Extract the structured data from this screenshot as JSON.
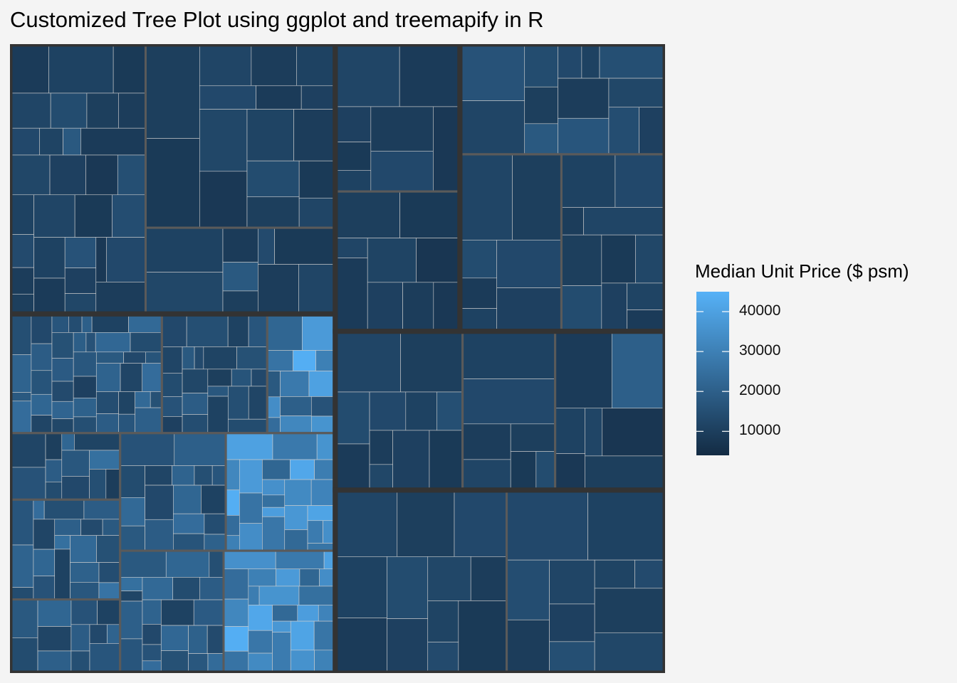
{
  "chart_data": {
    "type": "treemap",
    "title": "Customized Tree Plot using ggplot and treemapify in R",
    "fill_label": "Median Unit Price ($ psm)",
    "fill_range": [
      4000,
      45000
    ],
    "fill_colors": {
      "low": "#132B43",
      "high": "#56B1F7"
    },
    "legend": {
      "position": "right",
      "ticks": [
        {
          "value": 10000,
          "label": "10000"
        },
        {
          "value": 20000,
          "label": "20000"
        },
        {
          "value": 30000,
          "label": "30000"
        },
        {
          "value": 40000,
          "label": "40000"
        }
      ]
    },
    "border_colors": {
      "level1": "#333333",
      "level2": "#5a5a5a",
      "level3": "#cfcfcf"
    },
    "groups": [
      {
        "weight": 42.9,
        "subgroups": [
          {
            "weight": 20.6,
            "tiles": [
              9000,
              11000,
              8500,
              12000,
              14000,
              10000,
              9500,
              13000,
              11500,
              18000,
              9000,
              12500,
              10500,
              8000,
              15000,
              11000,
              13500,
              9500,
              10000,
              12000,
              8500,
              14500,
              11000,
              9000,
              16000,
              10500,
              12500,
              8000,
              13000,
              9500
            ]
          },
          {
            "weight": 19.6,
            "tiles": [
              10000,
              8500,
              12000,
              9500,
              11000,
              13000,
              9000,
              10500,
              12500,
              8000,
              11500,
              9500,
              14000,
              10000,
              8500,
              12000
            ]
          },
          {
            "weight": 9.2,
            "tiles": [
              11000,
              12500,
              9000,
              18000,
              10000,
              13500,
              8500,
              9500,
              12000
            ]
          }
        ]
      },
      {
        "weight": 57.1,
        "subgroups": [
          {
            "weight": 16.3,
            "tiles": [
              15000,
              21000,
              18000,
              24000,
              13000,
              19000,
              16500,
              22000,
              12000,
              17000,
              14500,
              20000,
              11000,
              23000,
              15500,
              18500,
              13500,
              21500,
              12500,
              19500,
              16000,
              22500,
              14000,
              17500,
              10500,
              20500,
              15000,
              18000,
              13000,
              16500,
              21000,
              12000,
              24000,
              14500,
              19000,
              11500,
              17000,
              23000,
              15500,
              20000
            ]
          },
          {
            "weight": 11.3,
            "tiles": [
              13000,
              15000,
              11000,
              17000,
              12000,
              14000,
              16000,
              10500,
              18000,
              13500,
              11500,
              15500,
              12500,
              19000,
              14500,
              10000,
              16500,
              13000,
              17500,
              11000,
              15000,
              12000,
              14000
            ]
          },
          {
            "weight": 7.3,
            "tiles": [
              22000,
              38000,
              26000,
              44000,
              30000,
              18000,
              34000,
              24000,
              28000,
              40000,
              20000,
              32000,
              16000,
              36000
            ]
          },
          {
            "weight": 6.6,
            "tiles": [
              12000,
              16000,
              10000,
              19000,
              14000,
              22000,
              11500,
              17500,
              13000,
              25000,
              15000,
              9500
            ]
          },
          {
            "weight": 9.9,
            "tiles": [
              17000,
              21000,
              14000,
              24000,
              15000,
              19000,
              12000,
              22000,
              16000,
              20000,
              13500,
              18000,
              25000,
              11000,
              23000,
              15500,
              20500,
              17500,
              14500,
              26000
            ]
          },
          {
            "weight": 7.3,
            "tiles": [
              18000,
              14000,
              22000,
              12000,
              20000,
              16000,
              11000,
              19000,
              15000,
              13000,
              21000,
              17000
            ]
          },
          {
            "weight": 11.2,
            "tiles": [
              16000,
              20000,
              14000,
              23000,
              18000,
              12000,
              21000,
              15000,
              17000,
              13000,
              19000,
              22000,
              11000,
              24000,
              16500,
              14500,
              20500
            ]
          },
          {
            "weight": 11.6,
            "tiles": [
              40000,
              28000,
              36000,
              32000,
              44000,
              24000,
              30000,
              38000,
              26000,
              34000,
              22000,
              42000,
              29000,
              35000,
              25000,
              39000,
              27000,
              33000,
              31000,
              37000,
              23000,
              41000,
              28500,
              34500,
              26500
            ]
          },
          {
            "weight": 11.4,
            "tiles": [
              18000,
              22000,
              15000,
              25000,
              12000,
              20000,
              17000,
              23000,
              14000,
              19000,
              21000,
              13000,
              16000,
              24000,
              11000,
              18500,
              22500,
              15500,
              20500,
              13500,
              17500,
              23500
            ]
          },
          {
            "weight": 12.3,
            "tiles": [
              35000,
              28000,
              40000,
              24000,
              32000,
              44000,
              26000,
              30000,
              38000,
              22000,
              34000,
              29000,
              36000,
              25000,
              42000,
              27000,
              33000,
              23000,
              39000,
              31000,
              37000,
              28500,
              41000,
              26500,
              35500,
              30500
            ]
          }
        ]
      },
      {
        "weight": 17.5,
        "subgroups": [
          {
            "weight": 9.8,
            "tiles": [
              12000,
              9000,
              10500,
              8500,
              11000,
              9500,
              13000,
              8000
            ]
          },
          {
            "weight": 9.3,
            "tiles": [
              10000,
              8500,
              12000,
              9000,
              11500,
              7500,
              10500,
              9500,
              8000
            ]
          }
        ]
      },
      {
        "weight": 28.8,
        "subgroups": [
          {
            "weight": 11.7,
            "tiles": [
              16000,
              12000,
              14000,
              10000,
              18000,
              13000,
              11000,
              15000,
              9500,
              17000,
              12500,
              14500,
              10500
            ]
          },
          {
            "weight": 9.3,
            "tiles": [
              12000,
              10000,
              14000,
              9000,
              11000,
              13000,
              10500
            ]
          },
          {
            "weight": 9.5,
            "tiles": [
              11000,
              13000,
              9500,
              12000,
              10000,
              14000,
              8500,
              12500,
              10500,
              11500,
              9000
            ]
          }
        ]
      },
      {
        "weight": 25.6,
        "subgroups": [
          {
            "weight": 8.8,
            "tiles": [
              12000,
              10000,
              14000,
              9000,
              13000,
              11000,
              15000,
              9500,
              12500,
              10500,
              8500
            ]
          },
          {
            "weight": 6.4,
            "tiles": [
              11000,
              13000,
              9500,
              12000,
              10000,
              8500,
              14000
            ]
          },
          {
            "weight": 7.6,
            "tiles": [
              9000,
              20000,
              11000,
              8000,
              12000,
              7500,
              10000
            ]
          }
        ]
      },
      {
        "weight": 29.5,
        "subgroups": [
          {
            "weight": 10.5,
            "tiles": [
              12000,
              10000,
              13000,
              11000,
              9000,
              14000,
              10500,
              12500,
              9500,
              11500,
              13500,
              8500
            ]
          },
          {
            "weight": 9.7,
            "tiles": [
              13000,
              11000,
              14500,
              9500,
              12000,
              10500,
              15000,
              11500,
              13500,
              10000,
              12500
            ]
          }
        ]
      }
    ]
  }
}
